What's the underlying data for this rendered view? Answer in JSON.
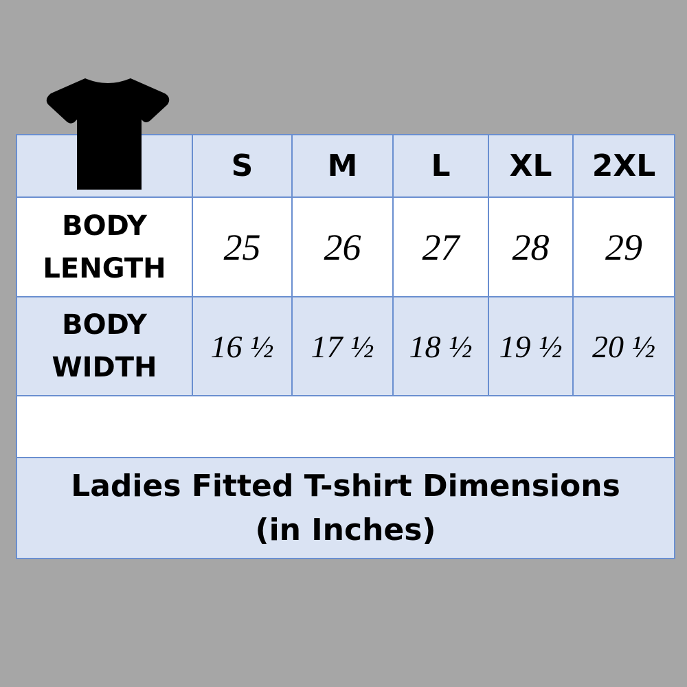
{
  "icon": "t-shirt-icon",
  "colors": {
    "background": "#a6a6a6",
    "row_blue": "#dae3f3",
    "border": "#6a8fd0"
  },
  "sizes": [
    "S",
    "M",
    "L",
    "XL",
    "2XL"
  ],
  "rows": [
    {
      "label_line1": "BODY",
      "label_line2": "LENGTH",
      "values": [
        "25",
        "26",
        "27",
        "28",
        "29"
      ]
    },
    {
      "label_line1": "BODY",
      "label_line2": "WIDTH",
      "values": [
        "16 ½",
        "17 ½",
        "18 ½",
        "19 ½",
        "20 ½"
      ]
    }
  ],
  "title_line1": "Ladies Fitted T-shirt Dimensions",
  "title_line2": "(in Inches)"
}
